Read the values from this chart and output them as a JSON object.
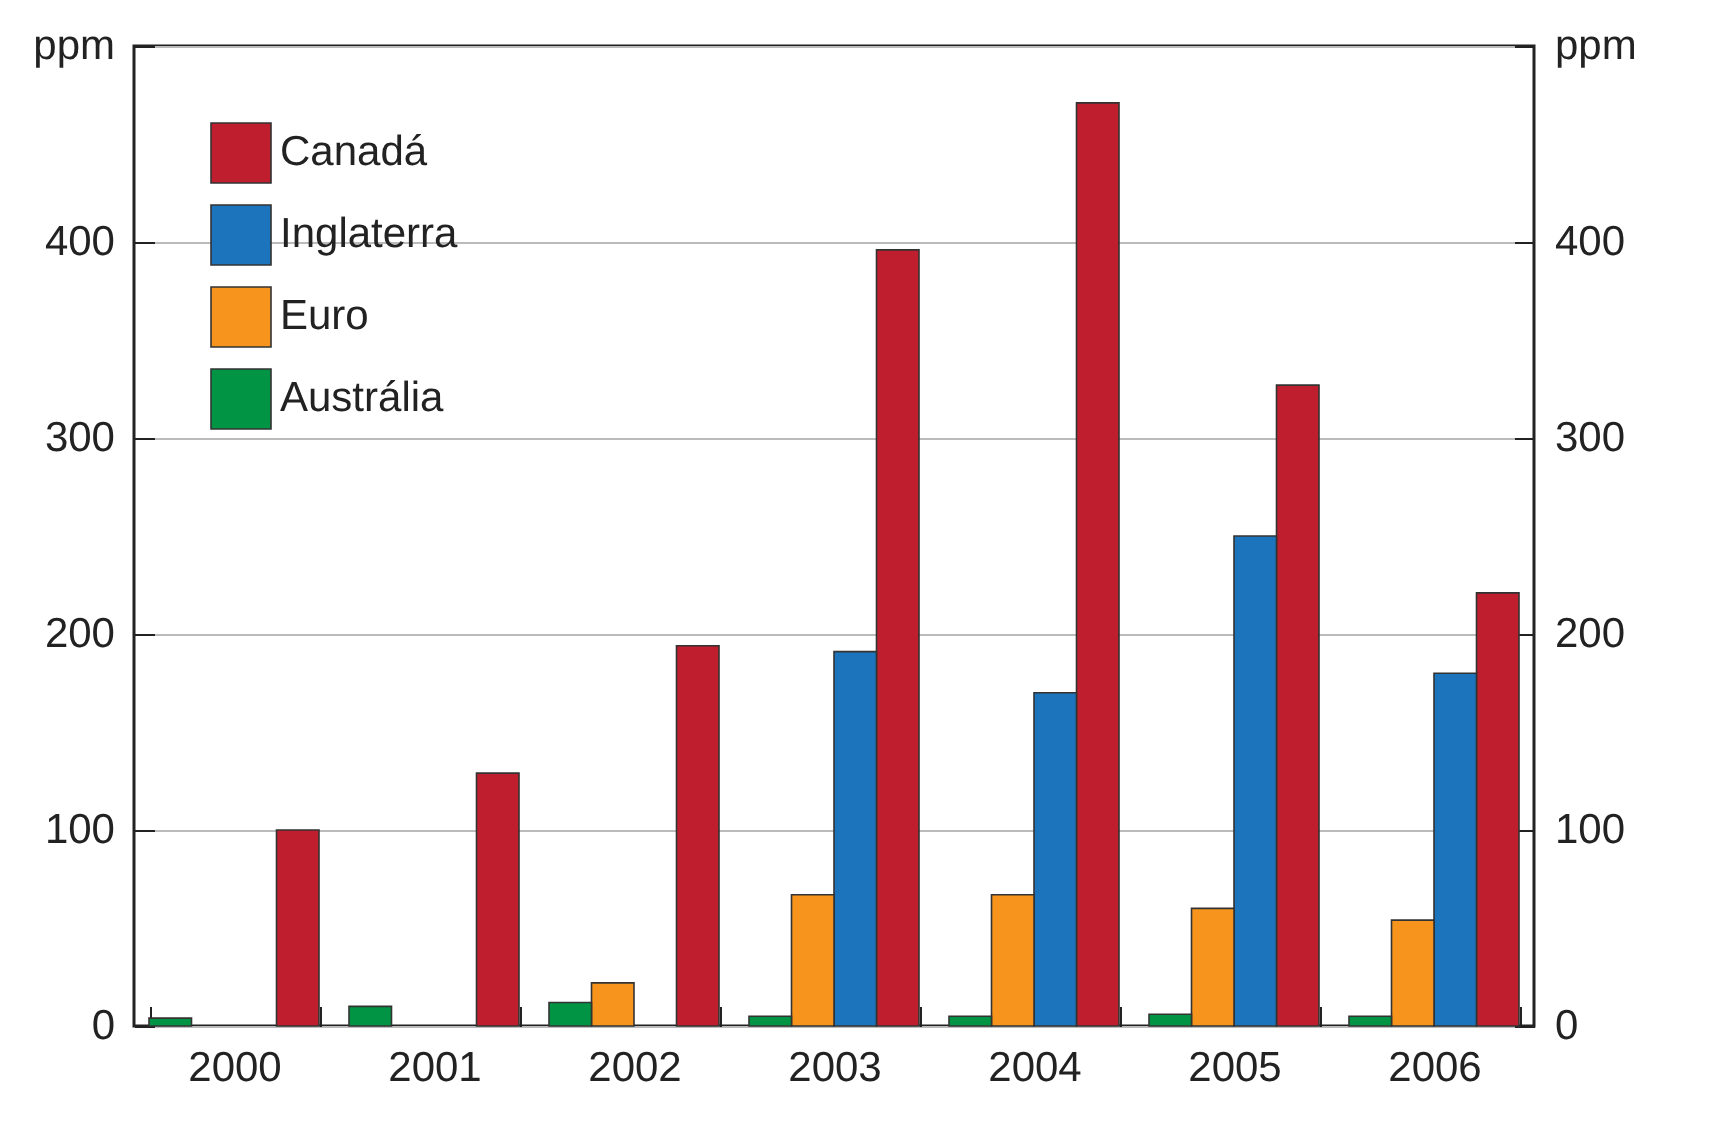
{
  "chart_data": {
    "type": "bar",
    "categories": [
      "2000",
      "2001",
      "2002",
      "2003",
      "2004",
      "2005",
      "2006"
    ],
    "series": [
      {
        "name": "Canadá",
        "color": "#be1e2d",
        "values": [
          100,
          129,
          194,
          396,
          471,
          327,
          221
        ]
      },
      {
        "name": "Inglaterra",
        "color": "#1c75bc",
        "values": [
          null,
          null,
          null,
          191,
          170,
          250,
          180
        ]
      },
      {
        "name": "Euro",
        "color": "#f7941d",
        "values": [
          null,
          null,
          22,
          67,
          67,
          60,
          54
        ]
      },
      {
        "name": "Austrália",
        "color": "#009444",
        "values": [
          4,
          10,
          12,
          5,
          5,
          6,
          5
        ]
      }
    ],
    "ylim": [
      0,
      500
    ],
    "yticks": [
      0,
      100,
      200,
      300,
      400,
      {
        "value": 500,
        "label": "ppm"
      }
    ],
    "y2lim": [
      0,
      500
    ],
    "y2ticks": [
      0,
      100,
      200,
      300,
      400,
      {
        "value": 500,
        "label": "ppm"
      }
    ],
    "grid": "y",
    "legend": "top left"
  }
}
